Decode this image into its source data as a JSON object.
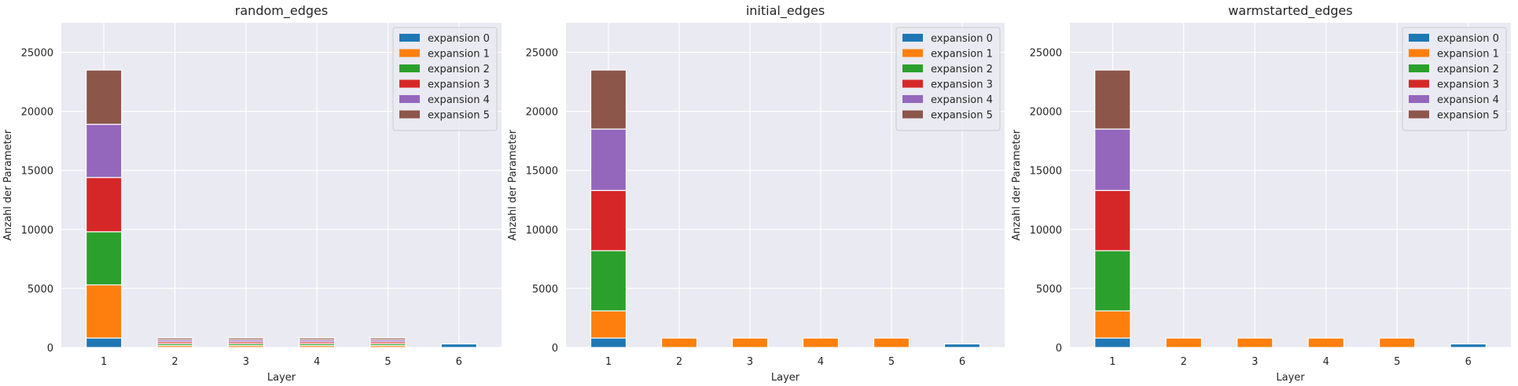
{
  "colors": {
    "background": "#eaeaf2",
    "grid": "#ffffff",
    "series": [
      "#1f77b4",
      "#ff7f0e",
      "#2ca02c",
      "#d62728",
      "#9467bd",
      "#8c564b"
    ]
  },
  "chart_data": [
    {
      "type": "bar",
      "stacked": true,
      "title": "random_edges",
      "xlabel": "Layer",
      "ylabel": "Anzahl der Parameter",
      "categories": [
        "1",
        "2",
        "3",
        "4",
        "5",
        "6"
      ],
      "ylim": [
        0,
        27500
      ],
      "yticks": [
        0,
        5000,
        10000,
        15000,
        20000,
        25000
      ],
      "grid": true,
      "legend": "top-right",
      "series": [
        {
          "name": "expansion 0",
          "values": [
            800,
            0,
            0,
            0,
            0,
            300
          ]
        },
        {
          "name": "expansion 1",
          "values": [
            4500,
            160,
            160,
            160,
            160,
            0
          ]
        },
        {
          "name": "expansion 2",
          "values": [
            4500,
            160,
            160,
            160,
            160,
            0
          ]
        },
        {
          "name": "expansion 3",
          "values": [
            4600,
            160,
            160,
            160,
            160,
            0
          ]
        },
        {
          "name": "expansion 4",
          "values": [
            4500,
            160,
            160,
            160,
            160,
            0
          ]
        },
        {
          "name": "expansion 5",
          "values": [
            4600,
            160,
            160,
            160,
            160,
            0
          ]
        }
      ]
    },
    {
      "type": "bar",
      "stacked": true,
      "title": "initial_edges",
      "xlabel": "Layer",
      "ylabel": "Anzahl der Parameter",
      "categories": [
        "1",
        "2",
        "3",
        "4",
        "5",
        "6"
      ],
      "ylim": [
        0,
        27500
      ],
      "yticks": [
        0,
        5000,
        10000,
        15000,
        20000,
        25000
      ],
      "grid": true,
      "legend": "top-right",
      "series": [
        {
          "name": "expansion 0",
          "values": [
            800,
            0,
            0,
            0,
            0,
            300
          ]
        },
        {
          "name": "expansion 1",
          "values": [
            2300,
            800,
            800,
            800,
            800,
            0
          ]
        },
        {
          "name": "expansion 2",
          "values": [
            5100,
            0,
            0,
            0,
            0,
            0
          ]
        },
        {
          "name": "expansion 3",
          "values": [
            5100,
            0,
            0,
            0,
            0,
            0
          ]
        },
        {
          "name": "expansion 4",
          "values": [
            5200,
            0,
            0,
            0,
            0,
            0
          ]
        },
        {
          "name": "expansion 5",
          "values": [
            5000,
            0,
            0,
            0,
            0,
            0
          ]
        }
      ]
    },
    {
      "type": "bar",
      "stacked": true,
      "title": "warmstarted_edges",
      "xlabel": "Layer",
      "ylabel": "Anzahl der Parameter",
      "categories": [
        "1",
        "2",
        "3",
        "4",
        "5",
        "6"
      ],
      "ylim": [
        0,
        27500
      ],
      "yticks": [
        0,
        5000,
        10000,
        15000,
        20000,
        25000
      ],
      "grid": true,
      "legend": "top-right",
      "series": [
        {
          "name": "expansion 0",
          "values": [
            800,
            0,
            0,
            0,
            0,
            300
          ]
        },
        {
          "name": "expansion 1",
          "values": [
            2300,
            800,
            800,
            800,
            800,
            0
          ]
        },
        {
          "name": "expansion 2",
          "values": [
            5100,
            0,
            0,
            0,
            0,
            0
          ]
        },
        {
          "name": "expansion 3",
          "values": [
            5100,
            0,
            0,
            0,
            0,
            0
          ]
        },
        {
          "name": "expansion 4",
          "values": [
            5200,
            0,
            0,
            0,
            0,
            0
          ]
        },
        {
          "name": "expansion 5",
          "values": [
            5000,
            0,
            0,
            0,
            0,
            0
          ]
        }
      ]
    }
  ]
}
